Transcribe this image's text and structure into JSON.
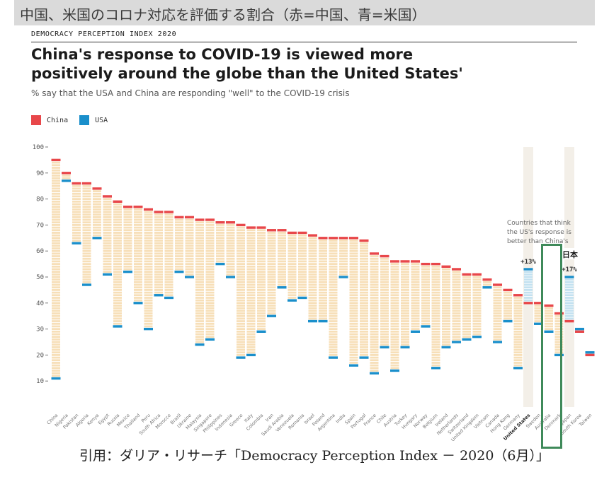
{
  "banner": {
    "text": "中国、米国のコロナ対応を評価する割合（赤=中国、青=米国）"
  },
  "header": {
    "index_label": "DEMOCRACY PERCEPTION INDEX 2020",
    "title_line1": "China's response to COVID-19 is viewed more",
    "title_line2": "positively around the globe than the United States'",
    "subtitle": "% say that the USA and China are responding \"well\" to the COVID-19 crisis"
  },
  "legend": {
    "china_label": "China",
    "usa_label": "USA"
  },
  "colors": {
    "china": "#e8474a",
    "usa": "#1a8fcb",
    "range_china_higher": "#f6dcb0",
    "range_usa_higher": "#bedff1",
    "highlight_column": "#f3efe8",
    "japan_box": "#3f8a5a"
  },
  "annotation": {
    "text_line1": "Countries that think",
    "text_line2": "the US's response is",
    "text_line3": "better than China's",
    "us_diff": "+13%",
    "japan_diff": "+17%",
    "japan_label": "日本"
  },
  "credit": "引用：ダリア・リサーチ「Democracy Perception Index － 2020（6月）」",
  "chart_data": {
    "type": "dumbbell",
    "ylim": [
      0,
      100
    ],
    "yticks": [
      10,
      20,
      30,
      40,
      50,
      60,
      70,
      80,
      90,
      100
    ],
    "categories": [
      "China",
      "Nigeria",
      "Pakistan",
      "Algeria",
      "Kenya",
      "Egypt",
      "Russia",
      "Mexico",
      "Thailand",
      "Peru",
      "South Africa",
      "Morocco",
      "Brazil",
      "Ukraine",
      "Malaysia",
      "Singapore",
      "Philippines",
      "Indonesia",
      "Greece",
      "Italy",
      "Colombia",
      "Iran",
      "Saudi Arabia",
      "Venezuela",
      "Romania",
      "Israel",
      "Poland",
      "Argentina",
      "India",
      "Spain",
      "Portugal",
      "France",
      "Chile",
      "Austria",
      "Turkey",
      "Hungary",
      "Norway",
      "Belgium",
      "Ireland",
      "Netherlands",
      "Switzerland",
      "United Kingdom",
      "Vietnam",
      "Canada",
      "Hong Kong",
      "Germany",
      "United States",
      "Sweden",
      "Australia",
      "Denmark",
      "Japan",
      "South Korea",
      "Taiwan"
    ],
    "highlight_categories": [
      "United States",
      "Japan"
    ],
    "series": [
      {
        "name": "China",
        "values": [
          95,
          90,
          86,
          86,
          84,
          81,
          79,
          77,
          77,
          76,
          75,
          75,
          73,
          73,
          72,
          72,
          71,
          71,
          70,
          69,
          69,
          68,
          68,
          67,
          67,
          66,
          65,
          65,
          65,
          65,
          64,
          59,
          58,
          56,
          56,
          56,
          55,
          55,
          54,
          53,
          51,
          51,
          49,
          47,
          45,
          43,
          40,
          40,
          39,
          36,
          33,
          29,
          20
        ]
      },
      {
        "name": "USA",
        "values": [
          11,
          87,
          63,
          47,
          65,
          51,
          31,
          52,
          40,
          30,
          43,
          42,
          52,
          50,
          24,
          26,
          55,
          50,
          19,
          20,
          29,
          35,
          46,
          41,
          42,
          33,
          33,
          19,
          50,
          16,
          19,
          13,
          23,
          14,
          23,
          29,
          31,
          15,
          23,
          25,
          26,
          27,
          46,
          25,
          33,
          15,
          53,
          32,
          29,
          20,
          50,
          30,
          21
        ]
      }
    ]
  }
}
